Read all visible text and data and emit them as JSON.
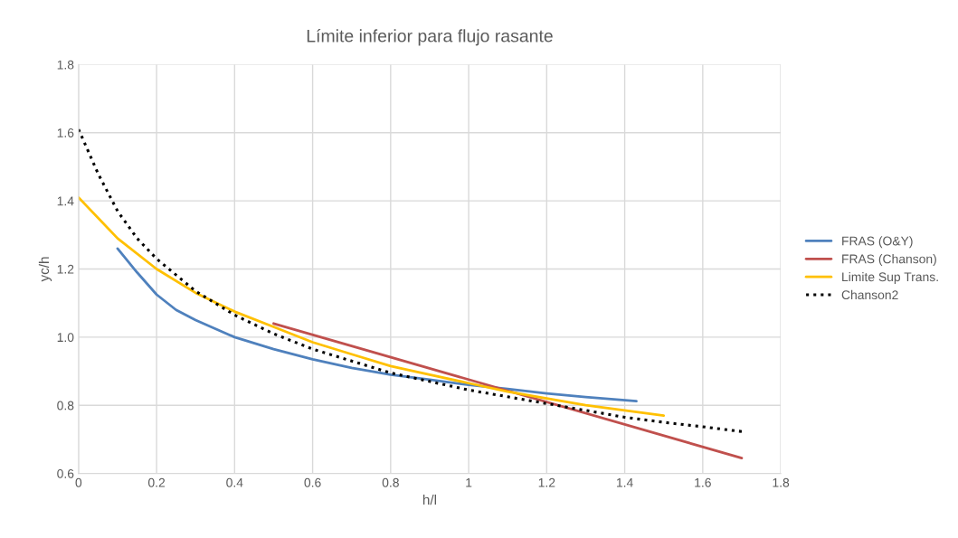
{
  "chart_data": {
    "type": "line",
    "title": "Límite inferior para flujo rasante",
    "xlabel": "h/l",
    "ylabel": "yc/h",
    "xlim": [
      0,
      1.8
    ],
    "xticks": [
      0,
      0.2,
      0.4,
      0.6,
      0.8,
      1,
      1.2,
      1.4,
      1.6,
      1.8
    ],
    "ylim": [
      0.6,
      1.8
    ],
    "yticks": [
      {
        "value": 0.6,
        "label": "0.6"
      },
      {
        "value": 0.8,
        "label": "0.8"
      },
      {
        "value": 1.0,
        "label": "1.0"
      },
      {
        "value": 1.2,
        "label": "1.2"
      },
      {
        "value": 1.4,
        "label": "1.4"
      },
      {
        "value": 1.6,
        "label": "1.6"
      },
      {
        "value": 1.8,
        "label": "1.8"
      }
    ],
    "grid": true,
    "legend": "right",
    "series": [
      {
        "name": "FRAS (O&Y)",
        "color": "#4f81bd",
        "x": [
          0.1,
          0.15,
          0.2,
          0.25,
          0.3,
          0.4,
          0.5,
          0.6,
          0.7,
          0.8,
          0.9,
          1.0,
          1.1,
          1.2,
          1.3,
          1.43
        ],
        "values": [
          1.26,
          1.19,
          1.125,
          1.08,
          1.05,
          1.0,
          0.965,
          0.935,
          0.91,
          0.89,
          0.875,
          0.86,
          0.848,
          0.835,
          0.824,
          0.812
        ]
      },
      {
        "name": "FRAS (Chanson)",
        "color": "#c0504d",
        "x": [
          0.5,
          1.7
        ],
        "values": [
          1.04,
          0.645
        ]
      },
      {
        "name": "Limite Sup Trans.",
        "color": "#ffc000",
        "x": [
          0,
          0.1,
          0.2,
          0.3,
          0.4,
          0.5,
          0.6,
          0.7,
          0.8,
          0.9,
          1.0,
          1.1,
          1.2,
          1.3,
          1.4,
          1.5
        ],
        "values": [
          1.41,
          1.29,
          1.2,
          1.13,
          1.075,
          1.03,
          0.985,
          0.95,
          0.915,
          0.89,
          0.865,
          0.84,
          0.82,
          0.8,
          0.785,
          0.77
        ]
      },
      {
        "name": "Chanson2",
        "color": "#000000",
        "line_style": "dotted",
        "x": [
          0,
          0.05,
          0.1,
          0.15,
          0.2,
          0.3,
          0.4,
          0.5,
          0.6,
          0.7,
          0.8,
          0.9,
          1.0,
          1.1,
          1.2,
          1.3,
          1.4,
          1.5,
          1.6,
          1.7
        ],
        "values": [
          1.61,
          1.48,
          1.37,
          1.29,
          1.23,
          1.135,
          1.065,
          1.01,
          0.965,
          0.93,
          0.895,
          0.87,
          0.845,
          0.825,
          0.805,
          0.785,
          0.765,
          0.75,
          0.737,
          0.723
        ]
      }
    ]
  }
}
